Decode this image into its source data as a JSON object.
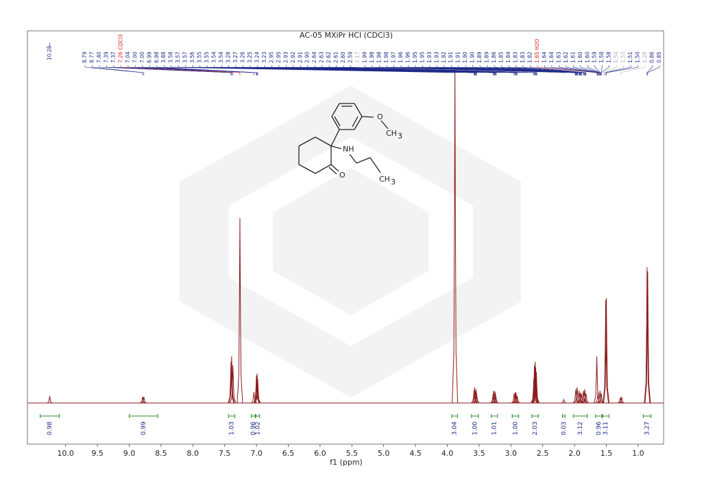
{
  "chart_data": {
    "type": "spectrum",
    "title": "AC-05 MXiPr HCl (CDCl3)",
    "xlabel": "f1 (ppm)",
    "xlim": [
      10.6,
      0.6
    ],
    "ylim": [
      0,
      500
    ],
    "xticks": [
      {
        "value": 10.0,
        "label": "10.0"
      },
      {
        "value": 9.5,
        "label": "9.5"
      },
      {
        "value": 9.0,
        "label": "9.0"
      },
      {
        "value": 8.5,
        "label": "8.5"
      },
      {
        "value": 8.0,
        "label": "8.0"
      },
      {
        "value": 7.5,
        "label": "7.5"
      },
      {
        "value": 7.0,
        "label": "7.0"
      },
      {
        "value": 6.5,
        "label": "6.5"
      },
      {
        "value": 6.0,
        "label": "6.0"
      },
      {
        "value": 5.5,
        "label": "5.5"
      },
      {
        "value": 5.0,
        "label": "5.0"
      },
      {
        "value": 4.5,
        "label": "4.5"
      },
      {
        "value": 4.0,
        "label": "4.0"
      },
      {
        "value": 3.5,
        "label": "3.5"
      },
      {
        "value": 3.0,
        "label": "3.0"
      },
      {
        "value": 2.5,
        "label": "2.5"
      },
      {
        "value": 2.0,
        "label": "2.0"
      },
      {
        "value": 1.5,
        "label": "1.5"
      },
      {
        "value": 1.0,
        "label": "1.0"
      }
    ],
    "color": "#8b1a1a",
    "label_color": "#1f2a8a",
    "integral_color": "#2e8b2e",
    "peaks": {
      "x": [
        10.25,
        8.79,
        8.77,
        7.4,
        7.39,
        7.37,
        7.26,
        7.04,
        7.0,
        6.99,
        6.98,
        3.88,
        3.58,
        3.57,
        3.55,
        3.54,
        3.28,
        3.27,
        3.25,
        3.24,
        2.95,
        2.93,
        2.92,
        2.9,
        2.64,
        2.63,
        2.62,
        2.61,
        2.6,
        2.17,
        1.98,
        1.96,
        1.93,
        1.91,
        1.89,
        1.86,
        1.84,
        1.82,
        1.65,
        1.63,
        1.6,
        1.58,
        1.51,
        1.5,
        1.28,
        1.26,
        0.86,
        0.85
      ],
      "values": [
        10,
        9,
        9,
        60,
        68,
        55,
        270,
        16,
        40,
        43,
        35,
        488,
        18,
        23,
        20,
        15,
        13,
        18,
        17,
        12,
        14,
        16,
        15,
        10,
        35,
        55,
        60,
        52,
        45,
        5,
        20,
        23,
        18,
        15,
        14,
        18,
        20,
        14,
        68,
        16,
        18,
        14,
        150,
        153,
        8,
        9,
        198,
        192
      ]
    },
    "peak_labels": [
      10.25,
      8.79,
      8.77,
      {
        "value": 7.4,
        "label": "7.40"
      },
      7.39,
      7.37,
      {
        "value": 7.26,
        "label": "7.26 CDCl3",
        "color": "#e02020"
      },
      7.04,
      {
        "value": 7.0,
        "label": "7.00"
      },
      {
        "value": 7.0,
        "label": "7.00"
      },
      6.99,
      6.98,
      3.88,
      3.58,
      3.57,
      3.57,
      3.56,
      3.55,
      3.55,
      3.54,
      3.54,
      3.28,
      3.27,
      3.26,
      3.25,
      3.24,
      3.23,
      2.95,
      2.95,
      2.93,
      2.92,
      2.91,
      {
        "value": 2.9,
        "label": "2.90"
      },
      2.64,
      2.63,
      2.62,
      2.61,
      {
        "value": 2.6,
        "label": "2.60"
      },
      2.59,
      {
        "value": 2.17,
        "label": "2.17",
        "color": "#b0b0b0"
      },
      1.99,
      1.98,
      1.98,
      1.98,
      1.97,
      1.96,
      1.96,
      1.95,
      1.95,
      1.93,
      1.93,
      1.92,
      1.91,
      1.91,
      {
        "value": 1.9,
        "label": "1.90"
      },
      {
        "value": 1.9,
        "label": "1.90"
      },
      1.89,
      1.89,
      1.86,
      1.85,
      1.84,
      1.83,
      1.83,
      1.82,
      {
        "value": 1.65,
        "label": "1.65 H2O",
        "color": "#e02020"
      },
      1.64,
      1.64,
      1.63,
      1.62,
      1.61,
      {
        "value": 1.6,
        "label": "1.60"
      },
      {
        "value": 1.6,
        "label": "1.60"
      },
      1.59,
      1.58,
      1.58,
      {
        "value": 1.54,
        "label": "1.54",
        "color": "#b0b0b0"
      },
      {
        "value": 1.53,
        "label": "1.53",
        "color": "#b0b0b0"
      },
      1.51,
      {
        "value": 1.5,
        "label": "1.50"
      },
      {
        "value": 1.28,
        "label": "1.28",
        "color": "#b0b0b0"
      },
      0.86,
      0.85
    ],
    "integrals": [
      {
        "from": 10.4,
        "to": 10.1,
        "value": 0.98
      },
      {
        "from": 9.0,
        "to": 8.55,
        "value": 0.99
      },
      {
        "from": 7.44,
        "to": 7.34,
        "value": 1.03
      },
      {
        "from": 7.08,
        "to": 7.02,
        "value": 0.96
      },
      {
        "from": 7.01,
        "to": 6.95,
        "value": 1.02
      },
      {
        "from": 3.93,
        "to": 3.84,
        "value": 3.04
      },
      {
        "from": 3.62,
        "to": 3.51,
        "value": {
          "value": 1.0,
          "label": "1.00"
        }
      },
      {
        "from": 3.31,
        "to": 3.21,
        "value": 1.01
      },
      {
        "from": 2.98,
        "to": 2.88,
        "value": {
          "value": 1.0,
          "label": "1.00"
        }
      },
      {
        "from": 2.67,
        "to": 2.57,
        "value": 2.03
      },
      {
        "from": 2.19,
        "to": 2.15,
        "value": 0.03
      },
      {
        "from": 2.02,
        "to": 1.8,
        "value": 3.12
      },
      {
        "from": 1.67,
        "to": 1.57,
        "value": 0.96
      },
      {
        "from": 1.56,
        "to": 1.46,
        "value": 3.11
      },
      {
        "from": 0.92,
        "to": 0.8,
        "value": 3.27
      }
    ],
    "structure_labels": [
      "O",
      "CH",
      "3",
      "NH",
      "O",
      "CH",
      "3"
    ]
  }
}
